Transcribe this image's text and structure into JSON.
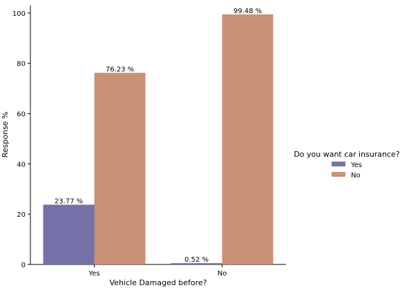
{
  "chart_data": {
    "type": "bar",
    "categories": [
      "Yes",
      "No"
    ],
    "series": [
      {
        "name": "Yes",
        "values": [
          23.77,
          0.52
        ],
        "labels": [
          "23.77 %",
          "0.52 %"
        ],
        "color": "#7572aa"
      },
      {
        "name": "No",
        "values": [
          76.23,
          99.48
        ],
        "labels": [
          "76.23 %",
          "99.48 %"
        ],
        "color": "#c99177"
      }
    ],
    "title": "",
    "xlabel": "Vehicle Damaged before?",
    "ylabel": "Response %",
    "ylim": [
      0,
      103
    ],
    "yticks": [
      0,
      20,
      40,
      60,
      80,
      100
    ],
    "grid": false,
    "legend": {
      "title": "Do you want car insurance?",
      "placement": "center-right outside"
    }
  }
}
